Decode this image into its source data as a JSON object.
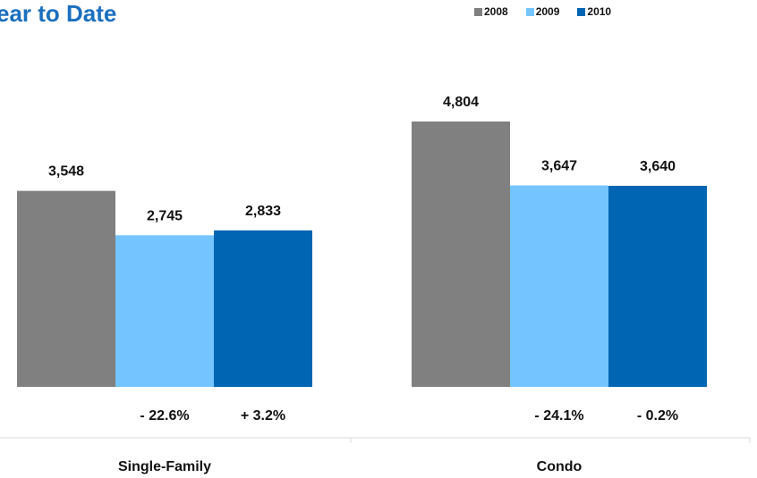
{
  "title": "ear to Date",
  "legend": [
    {
      "label": "2008",
      "color": "#808080"
    },
    {
      "label": "2009",
      "color": "#74c5ff"
    },
    {
      "label": "2010",
      "color": "#0066b3"
    }
  ],
  "chart_data": {
    "type": "bar",
    "title": "ear to Date",
    "categories": [
      "Single-Family",
      "Condo"
    ],
    "series": [
      {
        "name": "2008",
        "values": [
          3548,
          4804
        ],
        "labels": [
          "3,548",
          "4,804"
        ]
      },
      {
        "name": "2009",
        "values": [
          2745,
          3647
        ],
        "labels": [
          "2,745",
          "3,647"
        ]
      },
      {
        "name": "2010",
        "values": [
          2833,
          3640
        ],
        "labels": [
          "2,833",
          "3,640"
        ]
      }
    ],
    "change_labels": [
      [
        "- 22.6%",
        "+ 3.2%"
      ],
      [
        "- 24.1%",
        "- 0.2%"
      ]
    ],
    "ylim": [
      0,
      7000
    ],
    "grid": false,
    "legend_position": "top-right"
  }
}
